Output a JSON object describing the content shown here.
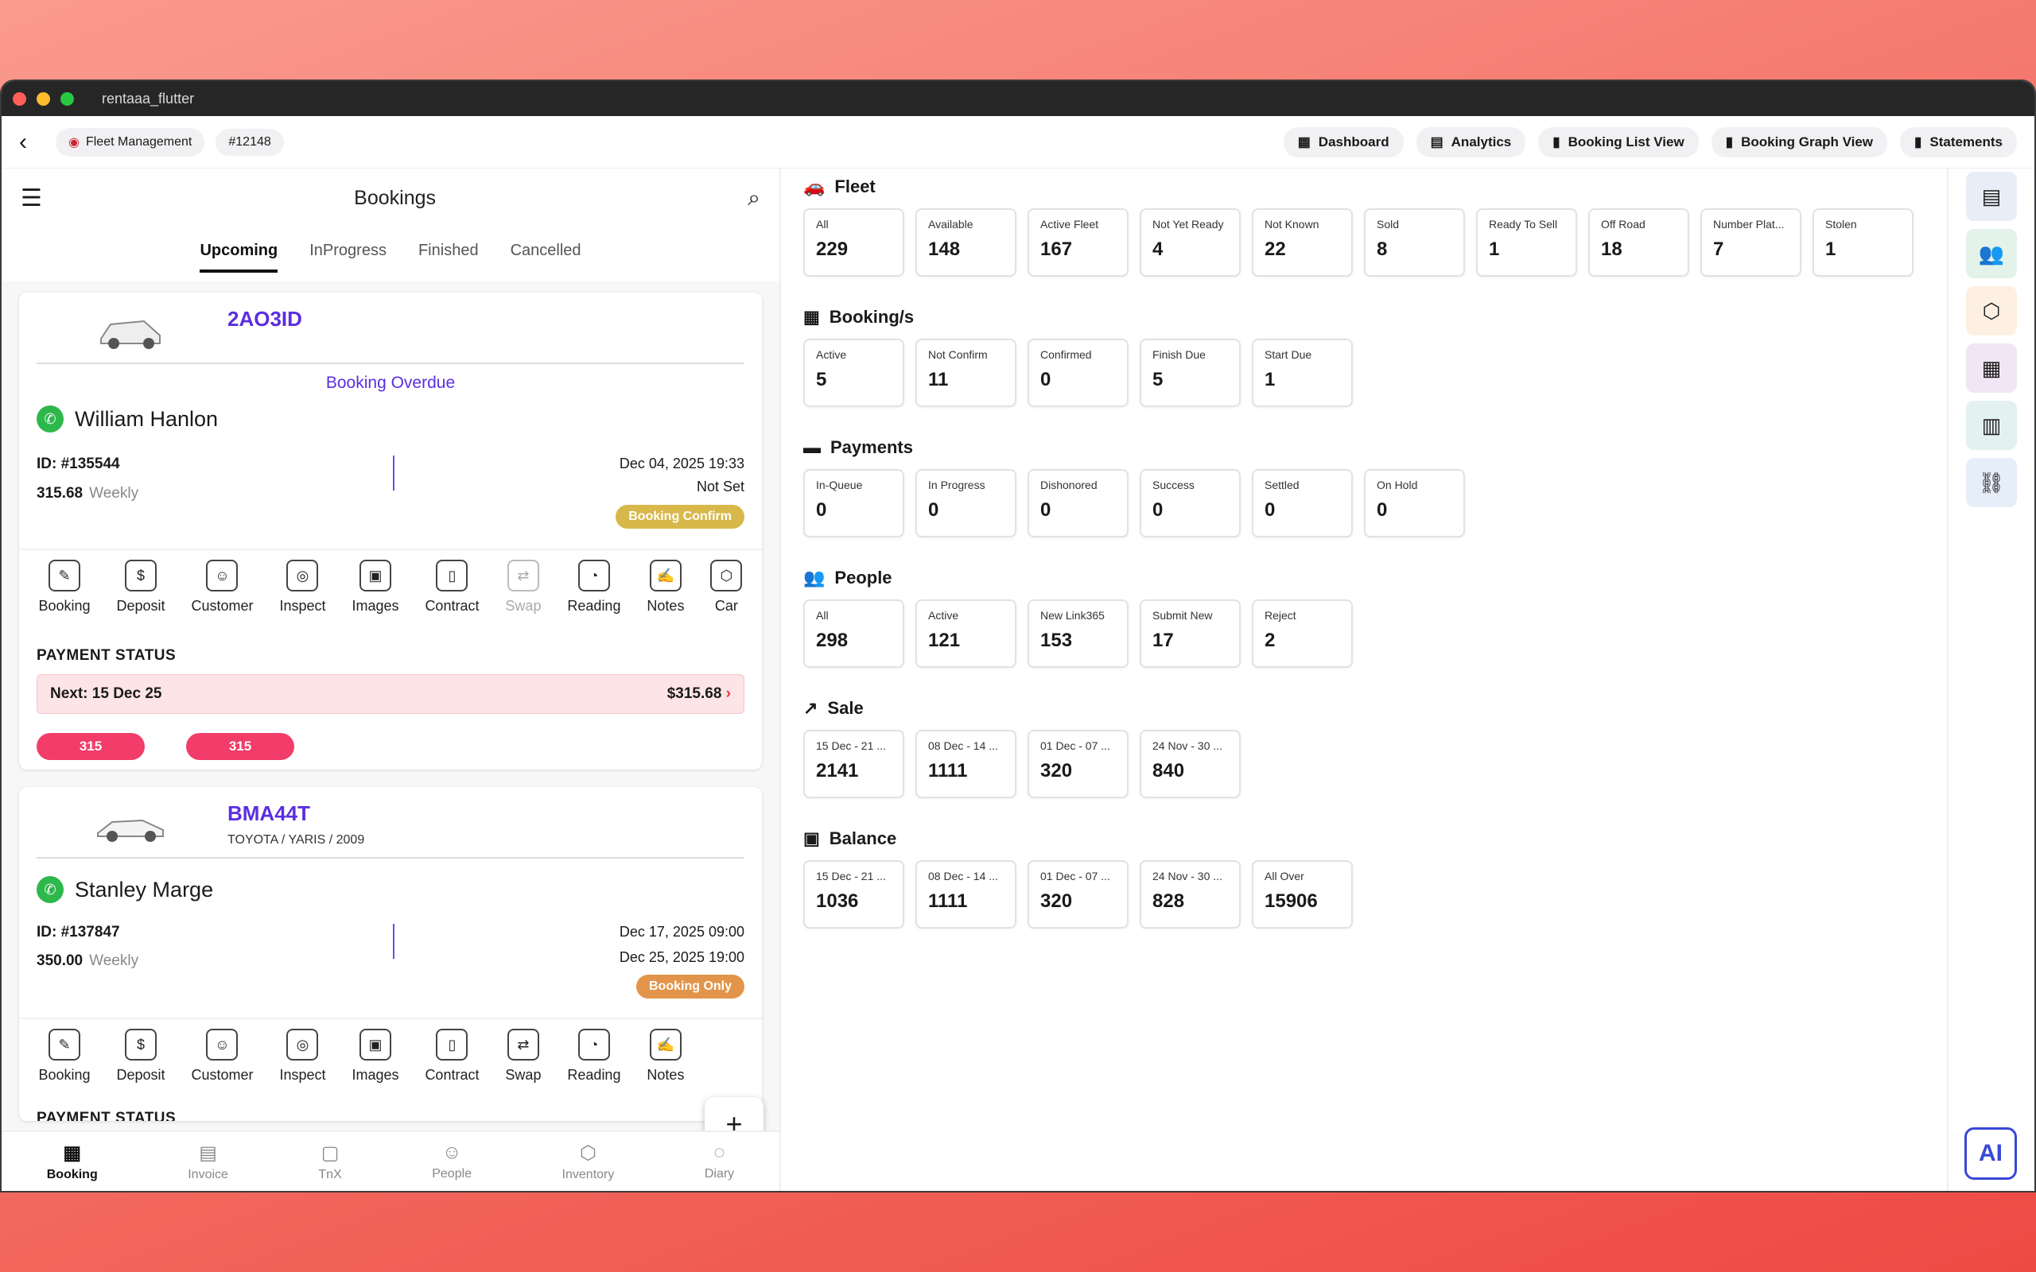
{
  "window": {
    "title": "rentaaa_flutter"
  },
  "appbar": {
    "chips": [
      "Fleet Management",
      "#12148"
    ],
    "nav": [
      "Dashboard",
      "Analytics",
      "Booking List View",
      "Booking Graph View",
      "Statements"
    ]
  },
  "left": {
    "title": "Bookings",
    "tabs": [
      "Upcoming",
      "InProgress",
      "Finished",
      "Cancelled"
    ],
    "cards": [
      {
        "plate": "2AO3ID",
        "model": "",
        "status": "Booking Overdue",
        "name": "William Hanlon",
        "id": "ID: #135544",
        "amount": "315.68",
        "period": "Weekly",
        "start": "Dec 04, 2025 19:33",
        "end": "Not Set",
        "badge": "Booking Confirm",
        "badge_color": "#d8b84a"
      },
      {
        "plate": "BMA44T",
        "model": "TOYOTA / YARIS / 2009",
        "status": "",
        "name": "Stanley Marge",
        "id": "ID: #137847",
        "amount": "350.00",
        "period": "Weekly",
        "start": "Dec 17, 2025 09:00",
        "end": "Dec 25, 2025 19:00",
        "badge": "Booking Only",
        "badge_color": "#e2954a"
      }
    ],
    "actions": [
      "Booking",
      "Deposit",
      "Customer",
      "Inspect",
      "Images",
      "Contract",
      "Swap",
      "Reading",
      "Notes",
      "Car"
    ],
    "payment": {
      "title": "PAYMENT STATUS",
      "next": "Next: 15 Dec 25",
      "amount": "$315.68",
      "pills": [
        "315",
        "315"
      ]
    },
    "payment2_title": "PAYMENT STATUS",
    "bottom_nav": [
      "Booking",
      "Invoice",
      "TnX",
      "People",
      "Inventory",
      "Diary"
    ]
  },
  "sections": [
    {
      "title": "Fleet",
      "tiles": [
        [
          "All",
          "229"
        ],
        [
          "Available",
          "148"
        ],
        [
          "Active Fleet",
          "167"
        ],
        [
          "Not Yet Ready",
          "4"
        ],
        [
          "Not Known",
          "22"
        ],
        [
          "Sold",
          "8"
        ],
        [
          "Ready To Sell",
          "1"
        ],
        [
          "Off Road",
          "18"
        ],
        [
          "Number Plat...",
          "7"
        ],
        [
          "Stolen",
          "1"
        ]
      ]
    },
    {
      "title": "Booking/s",
      "tiles": [
        [
          "Active",
          "5"
        ],
        [
          "Not Confirm",
          "11"
        ],
        [
          "Confirmed",
          "0"
        ],
        [
          "Finish Due",
          "5"
        ],
        [
          "Start Due",
          "1"
        ]
      ]
    },
    {
      "title": "Payments",
      "tiles": [
        [
          "In-Queue",
          "0"
        ],
        [
          "In Progress",
          "0"
        ],
        [
          "Dishonored",
          "0"
        ],
        [
          "Success",
          "0"
        ],
        [
          "Settled",
          "0"
        ],
        [
          "On Hold",
          "0"
        ]
      ]
    },
    {
      "title": "People",
      "tiles": [
        [
          "All",
          "298"
        ],
        [
          "Active",
          "121"
        ],
        [
          "New Link365",
          "153"
        ],
        [
          "Submit New",
          "17"
        ],
        [
          "Reject",
          "2"
        ]
      ]
    },
    {
      "title": "Sale",
      "tiles": [
        [
          "15 Dec - 21 ...",
          "2141"
        ],
        [
          "08 Dec - 14 ...",
          "1111"
        ],
        [
          "01 Dec - 07 ...",
          "320"
        ],
        [
          "24 Nov - 30 ...",
          "840"
        ]
      ]
    },
    {
      "title": "Balance",
      "tiles": [
        [
          "15 Dec - 21 ...",
          "1036"
        ],
        [
          "08 Dec - 14 ...",
          "1111"
        ],
        [
          "01 Dec - 07 ...",
          "320"
        ],
        [
          "24 Nov - 30 ...",
          "828"
        ],
        [
          "All Over",
          "15906"
        ]
      ]
    }
  ],
  "ai_label": "AI"
}
